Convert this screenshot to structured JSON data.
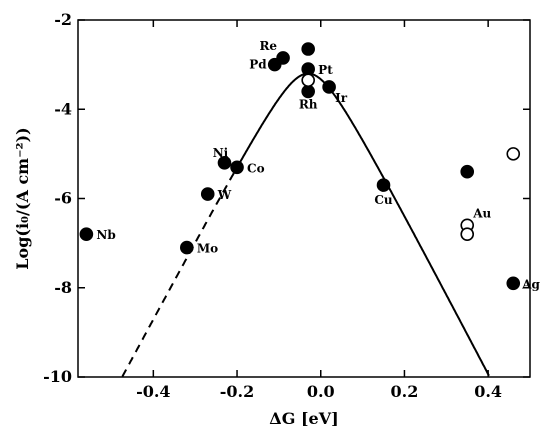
{
  "chart_data": {
    "type": "scatter",
    "xlabel": "ΔG [eV]",
    "ylabel": "Log(i₀/(A cm⁻²))",
    "xlim": [
      -0.58,
      0.5
    ],
    "ylim": [
      -10,
      -2
    ],
    "xticks": [
      -0.4,
      -0.2,
      0.0,
      0.2,
      0.4
    ],
    "xtick_labels": [
      "-0.4",
      "-0.2",
      "0.0",
      "0.2",
      "0.4"
    ],
    "yticks": [
      -10,
      -8,
      -6,
      -4,
      -2
    ],
    "ytick_labels": [
      "-10",
      "-8",
      "-6",
      "-4",
      "-2"
    ],
    "grid": false,
    "series": [
      {
        "marker": "filled-circle",
        "points": [
          {
            "label": "Nb",
            "x": -0.56,
            "y": -6.8
          },
          {
            "label": "Mo",
            "x": -0.32,
            "y": -7.1
          },
          {
            "label": "W",
            "x": -0.27,
            "y": -5.9
          },
          {
            "label": "Ni",
            "x": -0.23,
            "y": -5.2
          },
          {
            "label": "Co",
            "x": -0.2,
            "y": -5.3
          },
          {
            "label": "Re",
            "x": -0.09,
            "y": -2.85
          },
          {
            "label": "Pd",
            "x": -0.11,
            "y": -3.0
          },
          {
            "label": "",
            "x": -0.03,
            "y": -2.65
          },
          {
            "label": "Pt",
            "x": -0.03,
            "y": -3.1
          },
          {
            "label": "Rh",
            "x": -0.03,
            "y": -3.6
          },
          {
            "label": "Ir",
            "x": 0.02,
            "y": -3.5
          },
          {
            "label": "Cu",
            "x": 0.15,
            "y": -5.7
          },
          {
            "label": "",
            "x": 0.35,
            "y": -5.4
          },
          {
            "label": "Ag",
            "x": 0.46,
            "y": -7.9
          }
        ]
      },
      {
        "marker": "open-circle",
        "points": [
          {
            "label": "",
            "x": -0.03,
            "y": -3.35
          },
          {
            "label": "Au",
            "x": 0.35,
            "y": -6.6
          },
          {
            "label": "",
            "x": 0.35,
            "y": -6.8
          },
          {
            "label": "",
            "x": 0.46,
            "y": -5.0
          }
        ]
      }
    ],
    "curve": {
      "peak_x": -0.03,
      "peak_y": -3.2,
      "left_slope": 17.5,
      "right_slope": 18.0,
      "dashed_below_x": -0.2
    }
  }
}
